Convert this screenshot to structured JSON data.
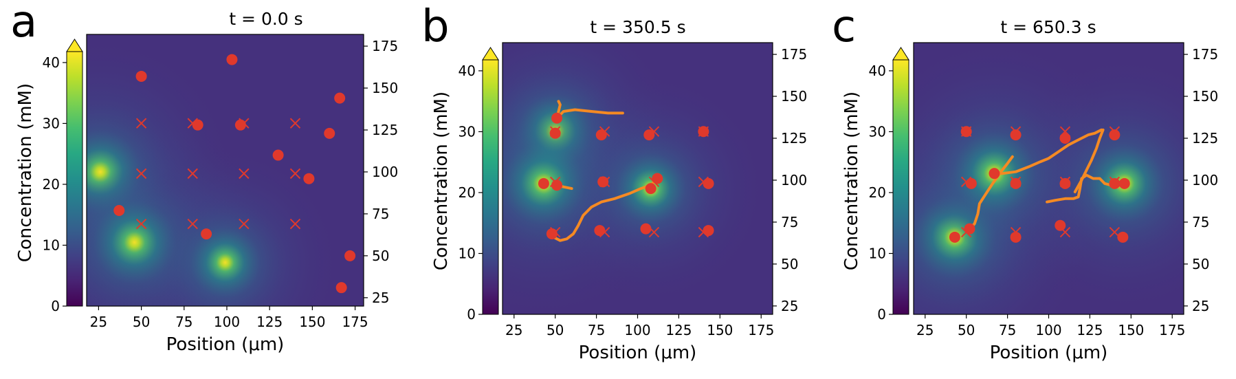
{
  "chart_data": [
    {
      "type": "scatter",
      "panel_label": "a",
      "title": "t = 0.0 s",
      "xlabel": "Position (μm)",
      "ylabel": "Concentration (mM)",
      "xlim": [
        18,
        180
      ],
      "ylim": [
        20,
        182
      ],
      "x_ticks": [
        25,
        50,
        75,
        100,
        125,
        150,
        175
      ],
      "y_ticks": [
        25,
        50,
        75,
        100,
        125,
        150,
        175
      ],
      "colorbar": {
        "range": [
          0,
          40
        ],
        "ticks": [
          0,
          10,
          20,
          30,
          40
        ],
        "extend": "max"
      },
      "colors": {
        "marker": "#e0392c",
        "trajectory": "#f58a23"
      },
      "sources": [
        {
          "x": 26,
          "y": 100,
          "s": 1.0
        },
        {
          "x": 46,
          "y": 58,
          "s": 1.0
        },
        {
          "x": 99,
          "y": 46,
          "s": 0.85
        }
      ],
      "cells": [
        {
          "x": 50,
          "y": 157
        },
        {
          "x": 103,
          "y": 167
        },
        {
          "x": 166,
          "y": 144
        },
        {
          "x": 83,
          "y": 128
        },
        {
          "x": 108,
          "y": 128
        },
        {
          "x": 160,
          "y": 123
        },
        {
          "x": 130,
          "y": 110
        },
        {
          "x": 148,
          "y": 96
        },
        {
          "x": 37,
          "y": 77
        },
        {
          "x": 88,
          "y": 63
        },
        {
          "x": 172,
          "y": 50
        },
        {
          "x": 167,
          "y": 31
        }
      ],
      "targets": [
        {
          "x": 50,
          "y": 129
        },
        {
          "x": 80,
          "y": 129
        },
        {
          "x": 110,
          "y": 129
        },
        {
          "x": 140,
          "y": 129
        },
        {
          "x": 50,
          "y": 99
        },
        {
          "x": 80,
          "y": 99
        },
        {
          "x": 110,
          "y": 99
        },
        {
          "x": 140,
          "y": 99
        },
        {
          "x": 50,
          "y": 69
        },
        {
          "x": 80,
          "y": 69
        },
        {
          "x": 110,
          "y": 69
        },
        {
          "x": 140,
          "y": 69
        }
      ],
      "trajectories": []
    },
    {
      "type": "scatter",
      "panel_label": "b",
      "title": "t = 350.5 s",
      "xlabel": "Position (μm)",
      "ylabel": "Concentration (mM)",
      "xlim": [
        18,
        182
      ],
      "ylim": [
        20,
        182
      ],
      "x_ticks": [
        25,
        50,
        75,
        100,
        125,
        150,
        175
      ],
      "y_ticks": [
        25,
        50,
        75,
        100,
        125,
        150,
        175
      ],
      "colorbar": {
        "range": [
          0,
          40
        ],
        "ticks": [
          0,
          10,
          20,
          30,
          40
        ],
        "extend": "max"
      },
      "colors": {
        "marker": "#e0392c",
        "trajectory": "#f58a23"
      },
      "sources": [
        {
          "x": 50,
          "y": 129,
          "s": 0.9
        },
        {
          "x": 43,
          "y": 98,
          "s": 1.0
        },
        {
          "x": 108,
          "y": 95,
          "s": 0.85
        }
      ],
      "cells": [
        {
          "x": 50,
          "y": 128
        },
        {
          "x": 51,
          "y": 137
        },
        {
          "x": 78,
          "y": 127
        },
        {
          "x": 107,
          "y": 127
        },
        {
          "x": 140,
          "y": 129
        },
        {
          "x": 43,
          "y": 98
        },
        {
          "x": 51,
          "y": 97
        },
        {
          "x": 79,
          "y": 99
        },
        {
          "x": 108,
          "y": 95
        },
        {
          "x": 112,
          "y": 101
        },
        {
          "x": 143,
          "y": 98
        },
        {
          "x": 48,
          "y": 68
        },
        {
          "x": 77,
          "y": 70
        },
        {
          "x": 105,
          "y": 71
        },
        {
          "x": 143,
          "y": 70
        }
      ],
      "targets": [
        {
          "x": 50,
          "y": 129
        },
        {
          "x": 80,
          "y": 129
        },
        {
          "x": 110,
          "y": 129
        },
        {
          "x": 140,
          "y": 129
        },
        {
          "x": 50,
          "y": 99
        },
        {
          "x": 80,
          "y": 99
        },
        {
          "x": 110,
          "y": 99
        },
        {
          "x": 140,
          "y": 99
        },
        {
          "x": 50,
          "y": 69
        },
        {
          "x": 80,
          "y": 69
        },
        {
          "x": 110,
          "y": 69
        },
        {
          "x": 140,
          "y": 69
        }
      ],
      "trajectories": [
        [
          [
            51,
            137
          ],
          [
            52,
            141
          ],
          [
            53,
            145
          ],
          [
            52,
            147
          ]
        ],
        [
          [
            51,
            137
          ],
          [
            55,
            141
          ],
          [
            62,
            142
          ],
          [
            72,
            141
          ],
          [
            82,
            140
          ],
          [
            91,
            140
          ]
        ],
        [
          [
            51,
            97
          ],
          [
            55,
            96
          ],
          [
            60,
            95
          ]
        ],
        [
          [
            49,
            66
          ],
          [
            53,
            64
          ],
          [
            57,
            65
          ],
          [
            61,
            68
          ],
          [
            64,
            73
          ],
          [
            67,
            79
          ],
          [
            72,
            84
          ],
          [
            78,
            87
          ],
          [
            86,
            89
          ],
          [
            95,
            92
          ],
          [
            102,
            95
          ],
          [
            108,
            97
          ],
          [
            112,
            101
          ]
        ]
      ]
    },
    {
      "type": "scatter",
      "panel_label": "c",
      "title": "t = 650.3 s",
      "xlabel": "Position (μm)",
      "ylabel": "Concentration (mM)",
      "xlim": [
        18,
        182
      ],
      "ylim": [
        20,
        182
      ],
      "x_ticks": [
        25,
        50,
        75,
        100,
        125,
        150,
        175
      ],
      "y_ticks": [
        25,
        50,
        75,
        100,
        125,
        150,
        175
      ],
      "colorbar": {
        "range": [
          0,
          40
        ],
        "ticks": [
          0,
          10,
          20,
          30,
          40
        ],
        "extend": "max"
      },
      "colors": {
        "marker": "#e0392c",
        "trajectory": "#f58a23"
      },
      "sources": [
        {
          "x": 43,
          "y": 66,
          "s": 1.0
        },
        {
          "x": 67,
          "y": 104,
          "s": 1.0
        },
        {
          "x": 146,
          "y": 98,
          "s": 0.95
        }
      ],
      "cells": [
        {
          "x": 50,
          "y": 129
        },
        {
          "x": 80,
          "y": 127
        },
        {
          "x": 110,
          "y": 125
        },
        {
          "x": 140,
          "y": 127
        },
        {
          "x": 53,
          "y": 98
        },
        {
          "x": 67,
          "y": 104
        },
        {
          "x": 80,
          "y": 98
        },
        {
          "x": 110,
          "y": 98
        },
        {
          "x": 140,
          "y": 98
        },
        {
          "x": 146,
          "y": 98
        },
        {
          "x": 43,
          "y": 66
        },
        {
          "x": 52,
          "y": 71
        },
        {
          "x": 80,
          "y": 66
        },
        {
          "x": 107,
          "y": 73
        },
        {
          "x": 145,
          "y": 66
        }
      ],
      "targets": [
        {
          "x": 50,
          "y": 129
        },
        {
          "x": 80,
          "y": 129
        },
        {
          "x": 110,
          "y": 129
        },
        {
          "x": 140,
          "y": 129
        },
        {
          "x": 50,
          "y": 99
        },
        {
          "x": 80,
          "y": 99
        },
        {
          "x": 110,
          "y": 99
        },
        {
          "x": 140,
          "y": 99
        },
        {
          "x": 50,
          "y": 69
        },
        {
          "x": 80,
          "y": 69
        },
        {
          "x": 110,
          "y": 69
        },
        {
          "x": 140,
          "y": 69
        }
      ],
      "trajectories": [
        [
          [
            52,
            71
          ],
          [
            55,
            74
          ],
          [
            57,
            80
          ],
          [
            58,
            86
          ],
          [
            62,
            92
          ],
          [
            66,
            98
          ],
          [
            71,
            105
          ],
          [
            75,
            110
          ],
          [
            78,
            114
          ]
        ],
        [
          [
            67,
            104
          ],
          [
            72,
            104
          ],
          [
            80,
            105
          ],
          [
            88,
            108
          ],
          [
            95,
            111
          ],
          [
            100,
            113
          ],
          [
            106,
            117
          ],
          [
            112,
            121
          ],
          [
            118,
            124
          ],
          [
            124,
            127
          ],
          [
            128,
            128
          ],
          [
            132,
            130
          ]
        ],
        [
          [
            116,
            93
          ],
          [
            120,
            100
          ],
          [
            123,
            106
          ],
          [
            126,
            112
          ],
          [
            129,
            119
          ],
          [
            131,
            125
          ],
          [
            133,
            130
          ]
        ],
        [
          [
            99,
            87
          ],
          [
            104,
            88
          ],
          [
            110,
            89
          ],
          [
            115,
            89
          ],
          [
            118,
            90
          ],
          [
            119,
            95
          ],
          [
            120,
            101
          ],
          [
            123,
            103
          ],
          [
            127,
            101
          ],
          [
            131,
            101
          ],
          [
            134,
            98
          ],
          [
            138,
            97
          ],
          [
            142,
            96
          ]
        ]
      ]
    }
  ]
}
